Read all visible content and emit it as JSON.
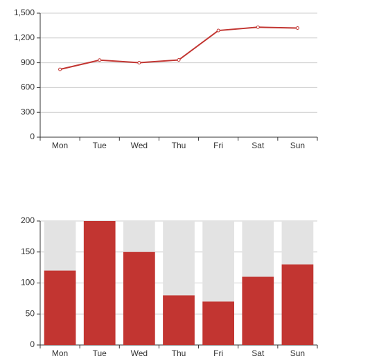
{
  "chart_data": [
    {
      "type": "line",
      "categories": [
        "Mon",
        "Tue",
        "Wed",
        "Thu",
        "Fri",
        "Sat",
        "Sun"
      ],
      "values": [
        820,
        932,
        901,
        934,
        1290,
        1330,
        1320
      ],
      "color": "#c23531",
      "ylim": [
        0,
        1500
      ],
      "yticks": [
        0,
        300,
        600,
        900,
        {
          "value": 1200,
          "label": "1,200"
        },
        {
          "value": 1500,
          "label": "1,500"
        }
      ],
      "grid": true
    },
    {
      "type": "bar",
      "categories": [
        "Mon",
        "Tue",
        "Wed",
        "Thu",
        "Fri",
        "Sat",
        "Sun"
      ],
      "values": [
        120,
        200,
        150,
        80,
        70,
        110,
        130
      ],
      "color": "#c23531",
      "background_color": "#e3e3e3",
      "ylim": [
        0,
        200
      ],
      "yticks": [
        0,
        50,
        100,
        150,
        200
      ],
      "grid": true
    }
  ]
}
